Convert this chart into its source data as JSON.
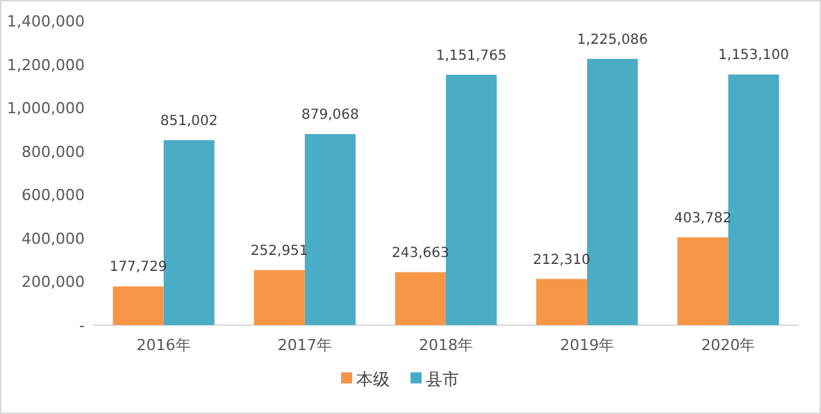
{
  "chart_data": {
    "type": "bar",
    "categories": [
      "2016年",
      "2017年",
      "2018年",
      "2019年",
      "2020年"
    ],
    "series": [
      {
        "name": "本级",
        "color": "#f79646",
        "values": [
          177729,
          252951,
          243663,
          212310,
          403782
        ],
        "value_labels": [
          "177,729",
          "252,951",
          "243,663",
          "212,310",
          "403,782"
        ]
      },
      {
        "name": "县市",
        "color": "#4bacc6",
        "values": [
          851002,
          879068,
          1151765,
          1225086,
          1153100
        ],
        "value_labels": [
          "851,002",
          "879,068",
          "1,151,765",
          "1,225,086",
          "1,153,100"
        ]
      }
    ],
    "ylim": [
      0,
      1400000
    ],
    "yticks": [
      {
        "value": 0,
        "label": "-"
      },
      {
        "value": 200000,
        "label": "200,000"
      },
      {
        "value": 400000,
        "label": "400,000"
      },
      {
        "value": 600000,
        "label": "600,000"
      },
      {
        "value": 800000,
        "label": "800,000"
      },
      {
        "value": 1000000,
        "label": "1,000,000"
      },
      {
        "value": 1200000,
        "label": "1,200,000"
      },
      {
        "value": 1400000,
        "label": "1,400,000"
      }
    ],
    "grid": false,
    "legend": "bottom"
  }
}
